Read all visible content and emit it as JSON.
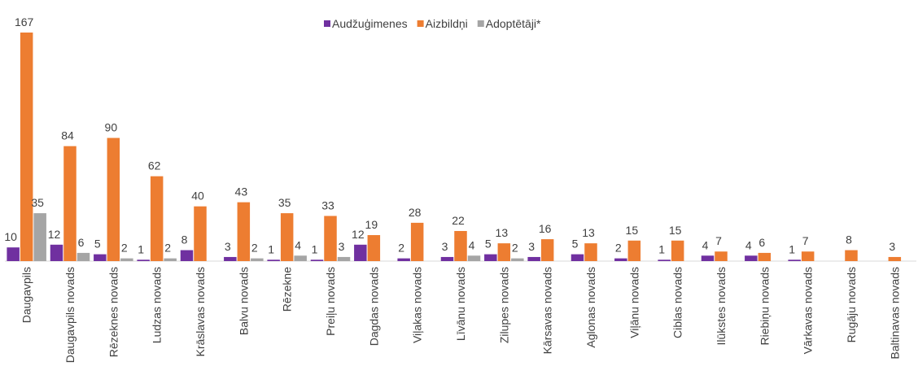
{
  "chart_data": {
    "type": "bar",
    "categories": [
      "Daugavpils",
      "Daugavpils novads",
      "Rēzeknes novads",
      "Ludzas novads",
      "Krāslavas novads",
      "Balvu novads",
      "Rēzekne",
      "Preiļu novads",
      "Dagdas novads",
      "Viļakas novads",
      "Līvānu novads",
      "Zilupes novads",
      "Kārsavas novads",
      "Aglonas novads",
      "Viļānu novads",
      "Ciblas novads",
      "Ilūkstes novads",
      "Riebiņu novads",
      "Vārkavas novads",
      "Rugāju novads",
      "Baltinavas novads"
    ],
    "series": [
      {
        "name": "Audžuģimenes",
        "color": "#7030a0",
        "values": [
          10,
          12,
          5,
          1,
          8,
          3,
          1,
          1,
          12,
          2,
          3,
          5,
          3,
          5,
          2,
          1,
          4,
          4,
          1,
          null,
          null
        ]
      },
      {
        "name": "Aizbildņi",
        "color": "#ed7d31",
        "values": [
          167,
          84,
          90,
          62,
          40,
          43,
          35,
          33,
          19,
          28,
          22,
          13,
          16,
          13,
          15,
          15,
          7,
          6,
          7,
          8,
          3
        ]
      },
      {
        "name": "Adoptētāji*",
        "color": "#a5a5a5",
        "values": [
          35,
          6,
          2,
          2,
          null,
          2,
          4,
          3,
          null,
          null,
          4,
          2,
          null,
          null,
          null,
          null,
          null,
          null,
          null,
          null,
          null
        ]
      }
    ],
    "legend": "top"
  }
}
